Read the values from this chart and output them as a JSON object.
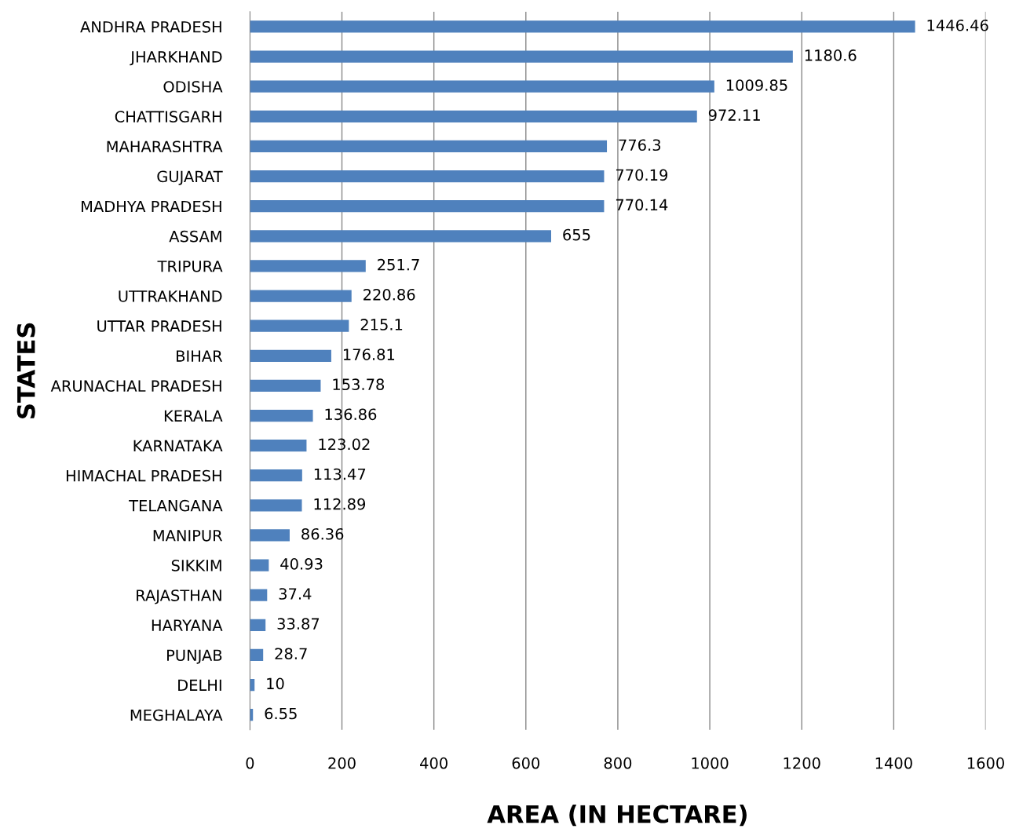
{
  "chart_data": {
    "type": "bar",
    "orientation": "horizontal",
    "xlabel": "AREA (IN HECTARE)",
    "ylabel": "STATES",
    "categories": [
      "ANDHRA PRADESH",
      "JHARKHAND",
      "ODISHA",
      "CHATTISGARH",
      "MAHARASHTRA",
      "GUJARAT",
      "MADHYA PRADESH",
      "ASSAM",
      "TRIPURA",
      "UTTRAKHAND",
      "UTTAR PRADESH",
      "BIHAR",
      "ARUNACHAL PRADESH",
      "KERALA",
      "KARNATAKA",
      "HIMACHAL PRADESH",
      "TELANGANA",
      "MANIPUR",
      "SIKKIM",
      "RAJASTHAN",
      "HARYANA",
      "PUNJAB",
      "DELHI",
      "MEGHALAYA"
    ],
    "values": [
      1446.46,
      1180.6,
      1009.85,
      972.11,
      776.3,
      770.19,
      770.14,
      655,
      251.7,
      220.86,
      215.1,
      176.81,
      153.78,
      136.86,
      123.02,
      113.47,
      112.89,
      86.36,
      40.93,
      37.4,
      33.87,
      28.7,
      10,
      6.55
    ],
    "color": "#4f81bd",
    "data_labels": true,
    "grid": "x",
    "xlim": [
      0,
      1600
    ],
    "xticks": [
      0,
      200,
      400,
      600,
      800,
      1000,
      1200,
      1400,
      1600
    ]
  }
}
